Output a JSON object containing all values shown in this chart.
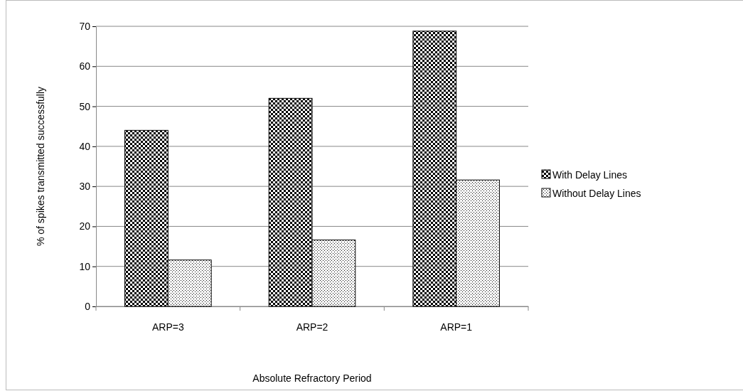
{
  "chart_data": {
    "type": "bar",
    "xlabel": "Absolute  Refractory Period",
    "ylabel": "% of spikes  transmitted successfully",
    "categories": [
      "ARP=3",
      "ARP=2",
      "ARP=1"
    ],
    "series": [
      {
        "name": "With Delay Lines",
        "color": "#000000",
        "values": [
          44,
          52,
          68.8
        ]
      },
      {
        "name": "Without Delay Lines",
        "color": "#000000",
        "values": [
          11.6,
          16.6,
          31.6
        ]
      }
    ],
    "ylim": [
      0,
      70
    ],
    "yticks": [
      0,
      10,
      20,
      30,
      40,
      50,
      60,
      70
    ],
    "grid": "y",
    "legend": "right"
  }
}
